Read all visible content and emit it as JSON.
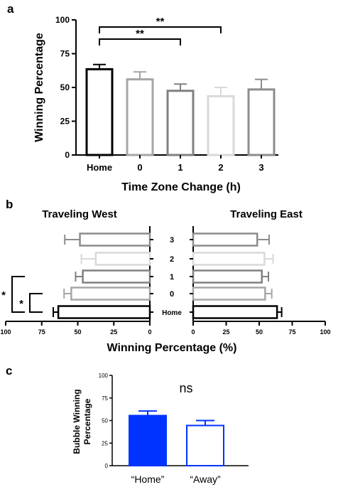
{
  "panels": {
    "a": {
      "letter": "a",
      "chart_data": {
        "type": "bar",
        "categories": [
          "Home",
          "0",
          "1",
          "2",
          "3"
        ],
        "values": [
          63.5,
          56,
          47.5,
          43.5,
          48.5
        ],
        "errors": [
          3.5,
          5.5,
          5,
          6.5,
          7.5
        ],
        "colors": [
          "#000000",
          "#a6a6a6",
          "#808080",
          "#d9d9d9",
          "#8c8c8c"
        ],
        "title": "",
        "xlabel": "Time Zone Change (h)",
        "ylabel": "Winning Percentage",
        "ylim": [
          0,
          100
        ],
        "yticks": [
          0,
          25,
          50,
          75,
          100
        ],
        "significance": [
          {
            "from": "Home",
            "to": "1",
            "label": "**"
          },
          {
            "from": "Home",
            "to": "2",
            "label": "**"
          }
        ]
      }
    },
    "b": {
      "letter": "b",
      "xlabel": "Winning Percentage (%)",
      "center_labels": [
        "3",
        "2",
        "1",
        "0",
        "Home"
      ],
      "chart_data": [
        {
          "type": "bar",
          "orientation": "horizontal",
          "title": "Traveling West",
          "categories": [
            "3",
            "2",
            "1",
            "0",
            "Home"
          ],
          "values": [
            48.5,
            37.5,
            46.5,
            54.5,
            63.5
          ],
          "errors": [
            10.5,
            10,
            5,
            5,
            3.5
          ],
          "colors": [
            "#8c8c8c",
            "#d9d9d9",
            "#808080",
            "#a6a6a6",
            "#000000"
          ],
          "xlim": [
            100,
            0
          ],
          "xticks": [
            100,
            75,
            50,
            25,
            0
          ],
          "significance": [
            {
              "from": "Home",
              "to": "1",
              "label": "*"
            },
            {
              "from": "Home",
              "to": "0",
              "label": "*"
            }
          ]
        },
        {
          "type": "bar",
          "orientation": "horizontal",
          "title": "Traveling East",
          "categories": [
            "3",
            "2",
            "1",
            "0",
            "Home"
          ],
          "values": [
            48.5,
            54,
            52,
            54.5,
            63.5
          ],
          "errors": [
            9,
            6.5,
            5,
            5,
            3.5
          ],
          "colors": [
            "#8c8c8c",
            "#d9d9d9",
            "#808080",
            "#a6a6a6",
            "#000000"
          ],
          "xlim": [
            0,
            100
          ],
          "xticks": [
            0,
            25,
            50,
            75,
            100
          ]
        }
      ]
    },
    "c": {
      "letter": "c",
      "chart_data": {
        "type": "bar",
        "categories": [
          "“Home”",
          "“Away”"
        ],
        "values": [
          55.5,
          44.5
        ],
        "errors": [
          5,
          5.5
        ],
        "fills": [
          "#0033ff",
          "#ffffff"
        ],
        "stroke": "#0033ff",
        "ylabel": "Bubble Winning Percentage",
        "ylabel_lines": [
          "Bubble Winning",
          "Percentage"
        ],
        "ylim": [
          0,
          100
        ],
        "yticks": [
          0,
          25,
          50,
          75,
          100
        ],
        "annotation": "ns"
      }
    }
  }
}
